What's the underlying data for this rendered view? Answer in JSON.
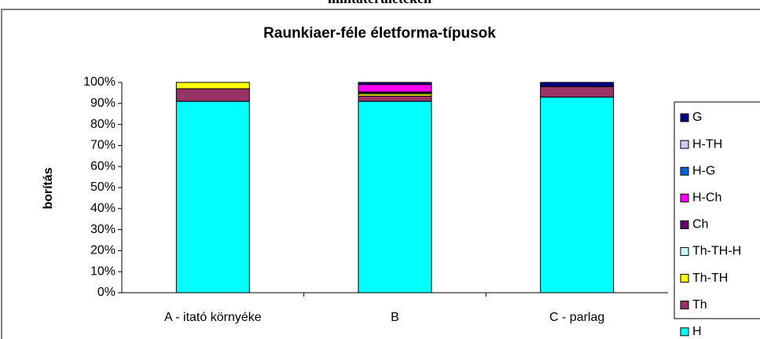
{
  "chart_data": {
    "type": "stacked_bar",
    "header_text": "mintaterületeken",
    "title": "Raunkiaer-féle életforma-típusok",
    "ylabel": "borítás",
    "categories": [
      "A - itató környéke",
      "B",
      "C - parlag"
    ],
    "series": [
      {
        "name": "H",
        "color": "#00ffff",
        "values": [
          91,
          91,
          93
        ]
      },
      {
        "name": "Th",
        "color": "#993366",
        "values": [
          6,
          2.5,
          5
        ]
      },
      {
        "name": "Th-TH",
        "color": "#ffff00",
        "values": [
          3,
          1,
          0
        ]
      },
      {
        "name": "Th-TH-H",
        "color": "#ccffff",
        "values": [
          0,
          0.5,
          0
        ]
      },
      {
        "name": "Ch",
        "color": "#660066",
        "values": [
          0,
          0.5,
          0
        ]
      },
      {
        "name": "H-Ch",
        "color": "#ff00ff",
        "values": [
          0,
          3.5,
          0
        ]
      },
      {
        "name": "H-G",
        "color": "#0066cc",
        "values": [
          0,
          0,
          0
        ]
      },
      {
        "name": "H-TH",
        "color": "#ccccff",
        "values": [
          0,
          0,
          0
        ]
      },
      {
        "name": "G",
        "color": "#000080",
        "values": [
          0,
          1,
          2
        ]
      }
    ],
    "ylim": [
      0,
      100
    ],
    "yticks": [
      {
        "value": 0,
        "label": "0%"
      },
      {
        "value": 10,
        "label": "10%"
      },
      {
        "value": 20,
        "label": "20%"
      },
      {
        "value": 30,
        "label": "30%"
      },
      {
        "value": 40,
        "label": "40%"
      },
      {
        "value": 50,
        "label": "50%"
      },
      {
        "value": 60,
        "label": "60%"
      },
      {
        "value": 70,
        "label": "70%"
      },
      {
        "value": 80,
        "label": "80%"
      },
      {
        "value": 90,
        "label": "90%"
      },
      {
        "value": 100,
        "label": "100%"
      }
    ],
    "legend": "right"
  }
}
